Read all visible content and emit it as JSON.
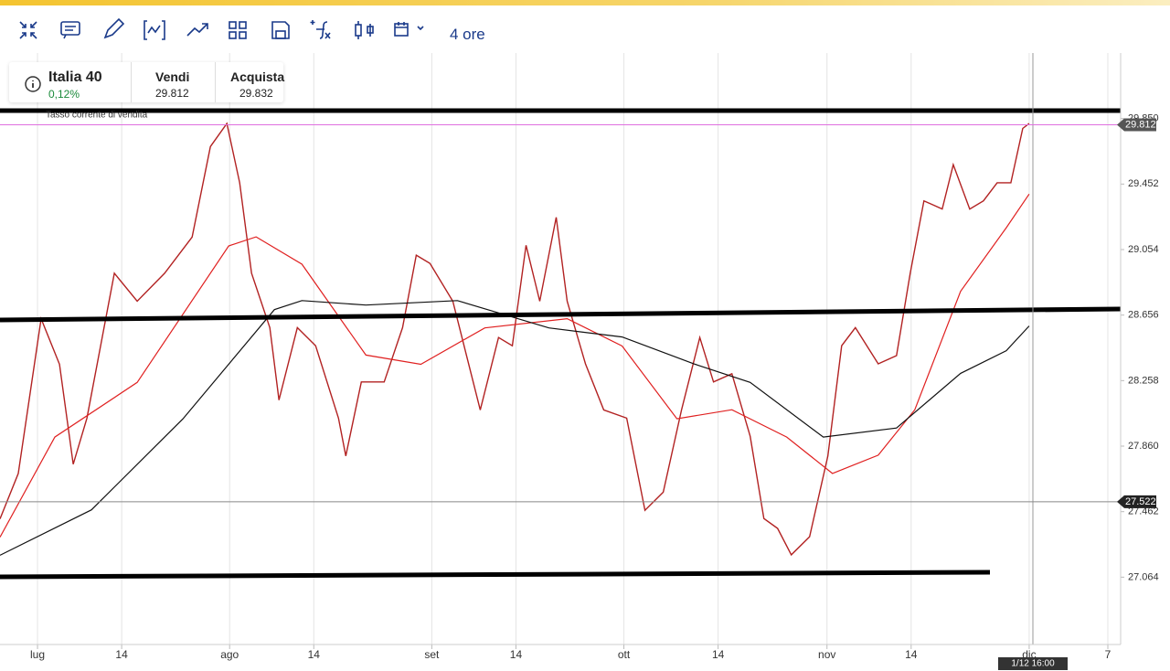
{
  "toolbar": {
    "timeframe": "4 ore"
  },
  "instrument": {
    "name": "Italia 40",
    "change": "0,12%",
    "sell_label": "Vendi",
    "sell": "29.812",
    "buy_label": "Acquista",
    "buy": "29.832",
    "note": "Tasso corrente di vendita"
  },
  "chart_data": {
    "type": "line",
    "xlim": [
      0,
      122.5
    ],
    "xticks": [
      {
        "value": 4.1,
        "label": "lug"
      },
      {
        "value": 13.3,
        "label": "14"
      },
      {
        "value": 25.1,
        "label": "ago"
      },
      {
        "value": 34.3,
        "label": "14"
      },
      {
        "value": 47.2,
        "label": "set"
      },
      {
        "value": 56.4,
        "label": "14"
      },
      {
        "value": 68.2,
        "label": "ott"
      },
      {
        "value": 78.5,
        "label": "14"
      },
      {
        "value": 90.4,
        "label": "nov"
      },
      {
        "value": 99.6,
        "label": "14"
      },
      {
        "value": 112.5,
        "label": "dic"
      },
      {
        "value": 121.1,
        "label": "7"
      }
    ],
    "ylim": [
      26.655,
      30.248
    ],
    "yticks": [
      {
        "value": 29.85,
        "label": "29.850"
      },
      29.452,
      29.054,
      28.656,
      28.258,
      {
        "value": 27.86,
        "label": "27.860"
      },
      27.462,
      27.064
    ],
    "grid": true,
    "series": [
      {
        "color": "#b22222",
        "x": [
          0,
          2,
          4.5,
          6.5,
          8,
          9.5,
          12.5,
          15,
          18,
          21,
          23,
          24.8,
          26.2,
          27.5,
          29.5,
          30.5,
          32.5,
          34.5,
          37,
          37.8,
          39.5,
          42,
          44,
          45.5,
          47,
          49.5,
          51.5,
          52.5,
          54.5,
          56,
          57.5,
          59,
          60.8,
          62,
          64,
          66,
          68.5,
          70.5,
          72.5,
          74.5,
          76.5,
          78,
          80,
          82,
          83.5,
          85,
          86.5,
          88.5,
          90.5,
          92,
          93.5,
          96,
          98,
          99.5,
          101,
          103,
          104.2,
          106,
          107.5,
          109,
          110.5,
          111.8,
          112.5
        ],
        "values": [
          27.418,
          27.694,
          28.634,
          28.357,
          27.75,
          28.03,
          28.91,
          28.74,
          28.91,
          29.13,
          29.68,
          29.82,
          29.46,
          28.91,
          28.58,
          28.14,
          28.58,
          28.47,
          28.03,
          27.8,
          28.25,
          28.25,
          28.58,
          29.02,
          28.97,
          28.74,
          28.3,
          28.08,
          28.52,
          28.47,
          29.08,
          28.74,
          29.25,
          28.74,
          28.36,
          28.08,
          28.03,
          27.47,
          27.58,
          28.08,
          28.52,
          28.25,
          28.3,
          27.92,
          27.42,
          27.36,
          27.2,
          27.31,
          27.8,
          28.47,
          28.58,
          28.36,
          28.41,
          28.91,
          29.35,
          29.3,
          29.57,
          29.3,
          29.35,
          29.46,
          29.46,
          29.79,
          29.82
        ]
      },
      {
        "color": "#e02020",
        "x": [
          0,
          6,
          15,
          25,
          28,
          33,
          40,
          46,
          53,
          62,
          68,
          74,
          80,
          86,
          91,
          96,
          100,
          105,
          110,
          112.5
        ],
        "values": [
          27.307,
          27.915,
          28.247,
          29.076,
          29.131,
          28.965,
          28.413,
          28.357,
          28.578,
          28.634,
          28.468,
          28.026,
          28.081,
          27.915,
          27.694,
          27.805,
          28.081,
          28.8,
          29.187,
          29.391
        ]
      },
      {
        "color": "#111111",
        "x": [
          0,
          10,
          20,
          30,
          33,
          40,
          50,
          60,
          68,
          76,
          82,
          90,
          98,
          105,
          110,
          112.5
        ],
        "values": [
          27.197,
          27.473,
          28.026,
          28.689,
          28.744,
          28.717,
          28.744,
          28.578,
          28.523,
          28.357,
          28.247,
          27.915,
          27.97,
          28.302,
          28.44,
          28.59
        ]
      }
    ],
    "price_tags": [
      {
        "value": 29.812,
        "color": "#e070e0",
        "tag": "#555"
      },
      {
        "value": 27.522,
        "color": "#888",
        "tag": "#222"
      }
    ],
    "cursor_label": "1/12 16:00"
  }
}
